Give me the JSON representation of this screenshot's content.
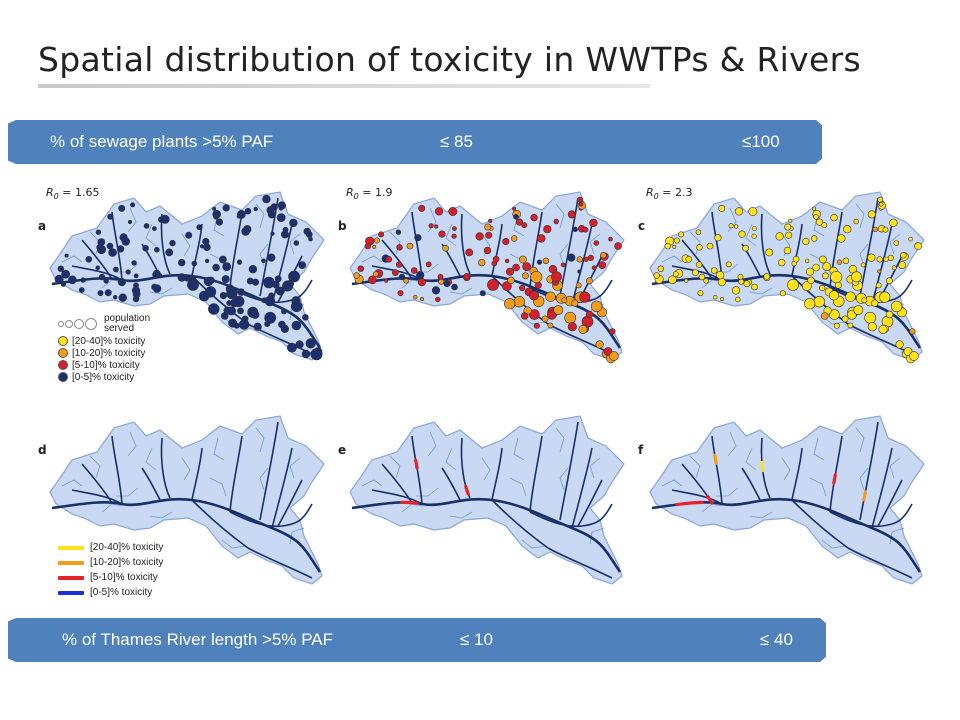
{
  "title": "Spatial distribution of toxicity in WWTPs & Rivers",
  "top_banner": {
    "label": "% of sewage plants >5% PAF",
    "value1": "≤ 85",
    "value2": "≤100"
  },
  "bottom_banner": {
    "label": "% of Thames River length >5% PAF",
    "value1": "≤ 10",
    "value2": "≤ 40"
  },
  "panels": [
    {
      "letter": "a",
      "r0": "R",
      "r0_sub": "0",
      "r0_value": " = 1.65",
      "mode": "dots",
      "scheme": "a"
    },
    {
      "letter": "b",
      "r0": "R",
      "r0_sub": "0",
      "r0_value": " = 1.9",
      "mode": "dots",
      "scheme": "b"
    },
    {
      "letter": "c",
      "r0": "R",
      "r0_sub": "0",
      "r0_value": " = 2.3",
      "mode": "dots",
      "scheme": "c"
    },
    {
      "letter": "d",
      "mode": "rivers",
      "scheme": "d"
    },
    {
      "letter": "e",
      "mode": "rivers",
      "scheme": "e"
    },
    {
      "letter": "f",
      "mode": "rivers",
      "scheme": "f"
    }
  ],
  "legend_points": {
    "population": "population",
    "served": "served",
    "items": [
      {
        "label": "[20-40]% toxicity",
        "color": "#ffe21a"
      },
      {
        "label": "[10-20]% toxicity",
        "color": "#f39c1b"
      },
      {
        "label": "[5-10]% toxicity",
        "color": "#d4202a"
      },
      {
        "label": "[0-5]% toxicity",
        "color": "#1c2f6e"
      }
    ]
  },
  "legend_rivers": {
    "items": [
      {
        "label": "[20-40]% toxicity",
        "color": "#ffe21a"
      },
      {
        "label": "[10-20]% toxicity",
        "color": "#f39c1b"
      },
      {
        "label": "[5-10]% toxicity",
        "color": "#e8202a"
      },
      {
        "label": "[0-5]% toxicity",
        "color": "#1a2fd8"
      }
    ]
  },
  "colors": {
    "banner": "#4f81bd",
    "basin_fill": "#c9d8f3",
    "basin_edge": "#8aa5d8",
    "river": "#18306a",
    "tributary": "#5a86cc"
  }
}
